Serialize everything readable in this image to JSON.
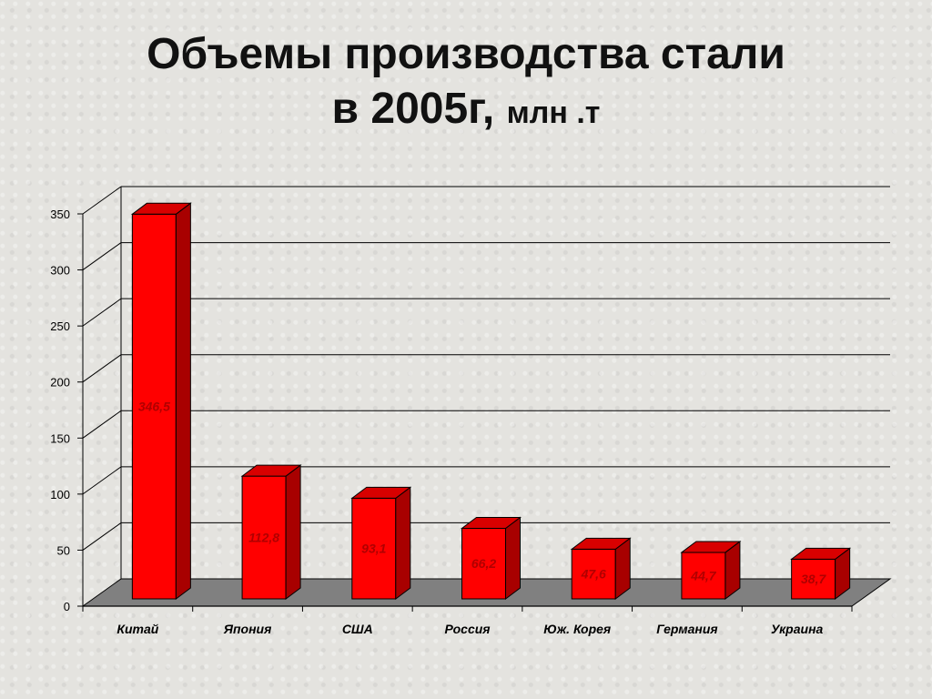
{
  "title": {
    "line1": "Объемы производства стали",
    "line2_main": "в 2005г,",
    "line2_unit": "млн .т"
  },
  "chart_data": {
    "type": "bar",
    "categories": [
      "Китай",
      "Япония",
      "США",
      "Россия",
      "Юж. Корея",
      "Германия",
      "Украина"
    ],
    "values": [
      346.5,
      112.8,
      93.1,
      66.2,
      47.6,
      44.7,
      38.7
    ],
    "value_labels": [
      "346,5",
      "112,8",
      "93,1",
      "66,2",
      "47,6",
      "44,7",
      "38,7"
    ],
    "yticks": [
      "0",
      "50",
      "100",
      "150",
      "200",
      "250",
      "300",
      "350"
    ],
    "ylim": [
      0,
      350
    ],
    "grid": true,
    "legend": false,
    "bar_color": "#ff0000",
    "bar_side_color": "#a80000",
    "bar_top_color": "#d80000",
    "label_color": "#b00000",
    "floor_color": "#808080"
  }
}
